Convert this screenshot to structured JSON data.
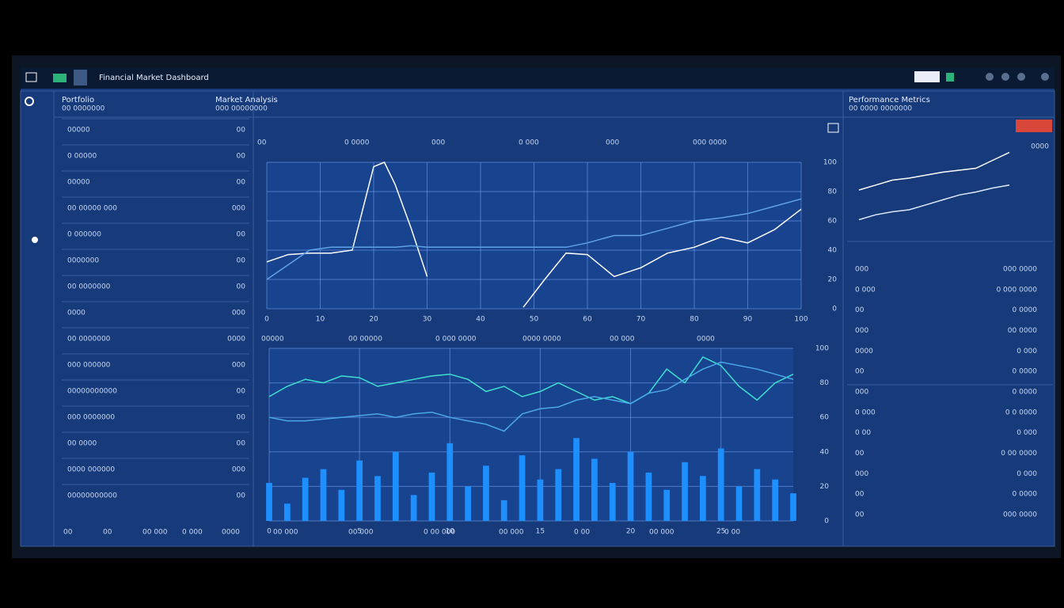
{
  "header": {
    "title": "Financial Market Dashboard"
  },
  "left_panel": {
    "heading": "Portfolio",
    "subheading": "00 0000000",
    "rows": [
      {
        "label": "00000",
        "value": "00"
      },
      {
        "label": "0 00000",
        "value": "00"
      },
      {
        "label": "00000",
        "value": "00"
      },
      {
        "label": "00 00000 000",
        "value": "000"
      },
      {
        "label": "0 000000",
        "value": "00"
      },
      {
        "label": "0000000",
        "value": "00"
      },
      {
        "label": "00 0000000",
        "value": "00"
      },
      {
        "label": "0000",
        "value": "000"
      },
      {
        "label": "00 0000000",
        "value": "0000"
      },
      {
        "label": "000 000000",
        "value": "000"
      },
      {
        "label": "00000000000",
        "value": "00"
      },
      {
        "label": "000 0000000",
        "value": "00"
      },
      {
        "label": "00 0000",
        "value": "00"
      },
      {
        "label": "0000 000000",
        "value": "000"
      },
      {
        "label": "00000000000",
        "value": "00"
      }
    ],
    "footer": [
      "00",
      "00",
      "00 000",
      "0 000",
      "0000"
    ]
  },
  "center_panel": {
    "heading": "Market Analysis",
    "subheading": "000 00000000",
    "top_labels": [
      "00",
      "0 0000",
      "000",
      "0 000",
      "000",
      "000 0000"
    ],
    "mid_labels": [
      "00000",
      "00 00000",
      "0 000 0000",
      "0000 0000",
      "00 000",
      "0000"
    ],
    "footer": [
      "00 000",
      "00 000",
      "0 00 000",
      "00 000",
      "0 00",
      "00 000",
      "0 00"
    ]
  },
  "right_panel": {
    "heading": "Performance Metrics",
    "subheading": "00 0000 0000000",
    "side_value": "0000",
    "rows": [
      {
        "label": "000",
        "value": "000 0000"
      },
      {
        "label": "0 000",
        "value": "0 000 0000"
      },
      {
        "label": "00",
        "value": "0 0000"
      },
      {
        "label": "000",
        "value": "00 0000"
      },
      {
        "label": "0000",
        "value": "0 000"
      },
      {
        "label": "00",
        "value": "0 0000"
      },
      {
        "label": "000",
        "value": "0 0000"
      },
      {
        "label": "0 000",
        "value": "0 0 0000"
      },
      {
        "label": "0 00",
        "value": "0 000"
      },
      {
        "label": "00",
        "value": "0 00 0000"
      },
      {
        "label": "000",
        "value": "0 000"
      },
      {
        "label": "00",
        "value": "0 0000"
      },
      {
        "label": "00",
        "value": "000 0000"
      }
    ]
  },
  "chart_data": [
    {
      "type": "line",
      "grid": true,
      "x": [
        0,
        4,
        8,
        12,
        16,
        20,
        22,
        24,
        27,
        30,
        33,
        45,
        48,
        52,
        56,
        60,
        65,
        70,
        75,
        80,
        85,
        90,
        95,
        100
      ],
      "xlim": [
        0,
        100
      ],
      "xticks": [
        0,
        10,
        20,
        30,
        40,
        50,
        60,
        70,
        80,
        90,
        100
      ],
      "ylim": [
        0,
        100
      ],
      "yticks": [
        0,
        20,
        40,
        60,
        80,
        100
      ],
      "series": [
        {
          "color": "#ffffff",
          "values": [
            32,
            37,
            38,
            38,
            40,
            97,
            100,
            85,
            55,
            22,
            null,
            null,
            1,
            20,
            38,
            37,
            22,
            28,
            38,
            42,
            49,
            45,
            54,
            68
          ]
        },
        {
          "color": "#5fa3e6",
          "values": [
            20,
            30,
            40,
            42,
            42,
            42,
            42,
            42,
            43,
            42,
            42,
            42,
            42,
            42,
            42,
            45,
            50,
            50,
            55,
            60,
            62,
            65,
            70,
            75
          ]
        }
      ]
    },
    {
      "type": "line",
      "grid": true,
      "x": [
        0,
        1,
        2,
        3,
        4,
        5,
        6,
        7,
        8,
        9,
        10,
        11,
        12,
        13,
        14,
        15,
        16,
        17,
        18,
        19,
        20,
        21,
        22,
        23,
        24,
        25,
        26,
        27,
        28,
        29
      ],
      "xlim": [
        0,
        29
      ],
      "xticks": [
        0,
        5,
        10,
        15,
        20,
        25
      ],
      "ylim": [
        0,
        100
      ],
      "yticks": [
        0,
        20,
        40,
        60,
        80,
        100
      ],
      "series": [
        {
          "color": "#3fe0d0",
          "style": "line",
          "values": [
            72,
            78,
            82,
            80,
            84,
            83,
            78,
            80,
            82,
            84,
            85,
            82,
            75,
            78,
            72,
            75,
            80,
            75,
            70,
            72,
            68,
            74,
            88,
            80,
            95,
            90,
            78,
            70,
            80,
            85
          ]
        },
        {
          "color": "#4aa8e8",
          "style": "line",
          "values": [
            60,
            58,
            58,
            59,
            60,
            61,
            62,
            60,
            62,
            63,
            60,
            58,
            56,
            52,
            62,
            65,
            66,
            70,
            72,
            70,
            68,
            74,
            76,
            82,
            88,
            92,
            90,
            88,
            85,
            82
          ]
        },
        {
          "color": "#1e8fff",
          "style": "bar",
          "values": [
            22,
            10,
            25,
            30,
            18,
            35,
            26,
            40,
            15,
            28,
            45,
            20,
            32,
            12,
            38,
            24,
            30,
            48,
            36,
            22,
            40,
            28,
            18,
            34,
            26,
            42,
            20,
            30,
            24,
            16
          ]
        }
      ]
    },
    {
      "type": "line",
      "grid": false,
      "x": [
        0,
        1,
        2,
        3,
        4,
        5,
        6,
        7,
        8,
        9
      ],
      "xlim": [
        0,
        9
      ],
      "ylim": [
        0,
        100
      ],
      "series": [
        {
          "color": "#ffffff",
          "values": [
            40,
            45,
            50,
            52,
            55,
            58,
            60,
            62,
            70,
            78
          ]
        },
        {
          "color": "#dfe8ff",
          "values": [
            10,
            15,
            18,
            20,
            25,
            30,
            35,
            38,
            42,
            45
          ]
        }
      ]
    }
  ]
}
